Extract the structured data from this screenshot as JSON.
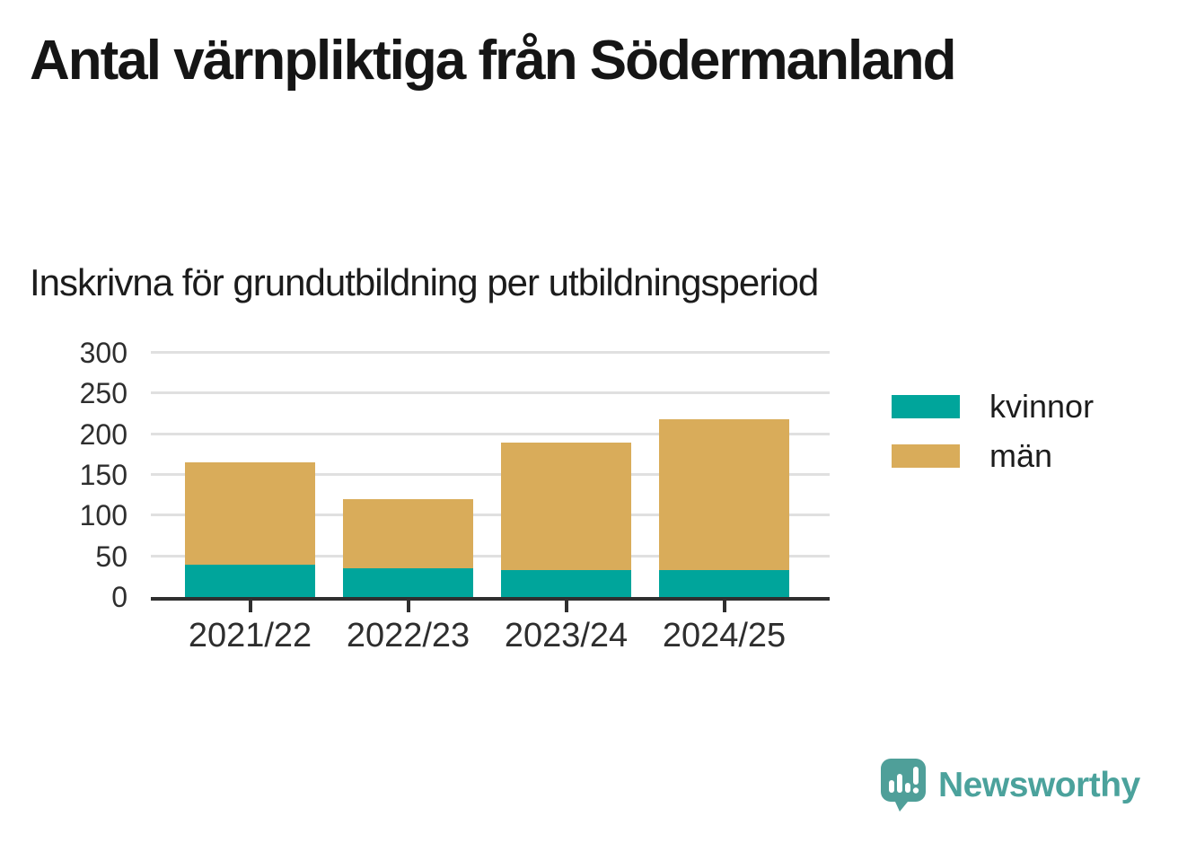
{
  "chart_data": {
    "type": "bar",
    "stacked": true,
    "title": "Antal värnpliktiga från Södermanland",
    "subtitle": "Inskrivna för grundutbildning per utbildningsperiod",
    "categories": [
      "2021/22",
      "2022/23",
      "2023/24",
      "2024/25"
    ],
    "series": [
      {
        "name": "kvinnor",
        "color": "#00a59b",
        "values": [
          40,
          35,
          33,
          33
        ]
      },
      {
        "name": "män",
        "color": "#d9ac5a",
        "values": [
          125,
          85,
          157,
          185
        ]
      }
    ],
    "totals": [
      165,
      120,
      190,
      218
    ],
    "xlabel": "",
    "ylabel": "",
    "ylim": [
      0,
      300
    ],
    "ytick_step": 50,
    "yticks": [
      0,
      50,
      100,
      150,
      200,
      250,
      300
    ],
    "grid": true,
    "legend_position": "right",
    "colors": {
      "axis": "#2f2f2f",
      "gridline": "#e0e0e0",
      "tick_label": "#2e2e2e"
    }
  },
  "branding": {
    "logo_text": "Newsworthy",
    "logo_color": "#4ba29c",
    "logo_bubble_color": "#4f9f99",
    "logo_icon": "newsworthy-speech-bubble-bar-chart-icon"
  }
}
